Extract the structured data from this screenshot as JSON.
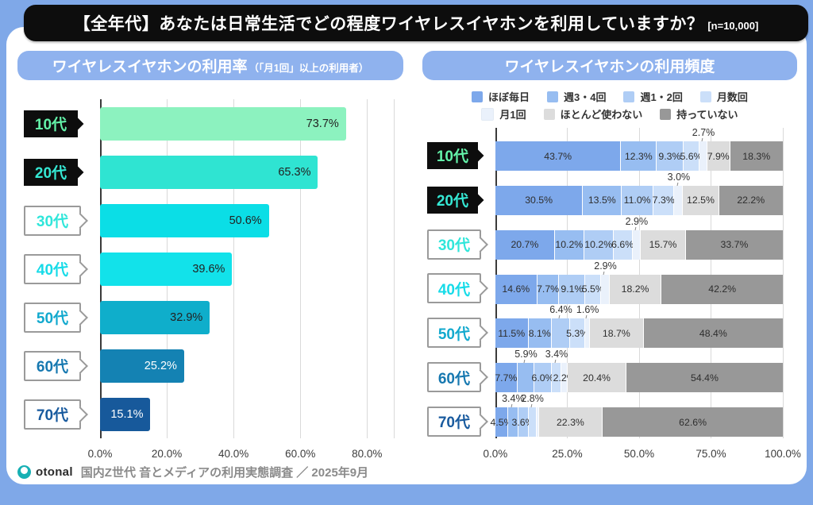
{
  "title": {
    "text": "【全年代】あなたは日常生活でどの程度ワイヤレスイヤホンを利用していますか？",
    "sample": "[n=10,000]"
  },
  "panels": {
    "usage_rate": {
      "header": "ワイヤレスイヤホンの利用率",
      "header_note": "（「月1回」以上の利用者）"
    },
    "frequency": {
      "header": "ワイヤレスイヤホンの利用頻度"
    }
  },
  "footer": {
    "brand": "otonal",
    "text": "国内Z世代 音とメディアの利用実態調査 ／ 2025年9月"
  },
  "colors": {
    "page_background": "#7FA8E8",
    "card": "#ffffff",
    "title_bar": "#0d0d0d",
    "header_pill": "#8FB2EE",
    "grid": "#d9d9d9",
    "axis_line": "#3a3a3a"
  },
  "chart_data": [
    {
      "type": "bar",
      "orientation": "horizontal",
      "title": "ワイヤレスイヤホンの利用率（「月1回」以上の利用者）",
      "categories": [
        "10代",
        "20代",
        "30代",
        "40代",
        "50代",
        "60代",
        "70代"
      ],
      "values": [
        73.7,
        65.3,
        50.6,
        39.6,
        32.9,
        25.2,
        15.1
      ],
      "value_labels": [
        "73.7%",
        "65.3%",
        "50.6%",
        "39.6%",
        "32.9%",
        "25.2%",
        "15.1%"
      ],
      "bar_colors": [
        "#8CF2BF",
        "#2FE4D2",
        "#0BDEE6",
        "#12E2EA",
        "#0FAECB",
        "#1482B3",
        "#17599B"
      ],
      "value_text_colors": [
        "#222222",
        "#222222",
        "#222222",
        "#222222",
        "#222222",
        "#ffffff",
        "#ffffff"
      ],
      "category_text_colors": [
        "#63F2A9",
        "#35E8D4",
        "#2FE6DA",
        "#16DBE8",
        "#12A9CE",
        "#1678B0",
        "#185A9E"
      ],
      "category_box_styles": [
        "black",
        "black",
        "white",
        "white",
        "white",
        "white",
        "white"
      ],
      "xticks": [
        {
          "label": "0.0%",
          "value": 0
        },
        {
          "label": "20.0%",
          "value": 20
        },
        {
          "label": "40.0%",
          "value": 40
        },
        {
          "label": "60.0%",
          "value": 60
        },
        {
          "label": "80.0%",
          "value": 80
        }
      ],
      "xmax": 88,
      "grid": true,
      "legend": false
    },
    {
      "type": "stacked-bar",
      "orientation": "horizontal",
      "title": "ワイヤレスイヤホンの利用頻度",
      "series": [
        "ほぼ毎日",
        "週3・4回",
        "週1・2回",
        "月数回",
        "月1回",
        "ほとんど使わない",
        "持っていない"
      ],
      "series_colors": [
        "#7DA8EB",
        "#97BDF1",
        "#AFCDF5",
        "#CBDFF9",
        "#EAF1FB",
        "#DCDCDC",
        "#989898"
      ],
      "legend_rows": [
        [
          "ほぼ毎日",
          "週3・4回",
          "週1・2回",
          "月数回"
        ],
        [
          "月1回",
          "ほとんど使わない",
          "持っていない"
        ]
      ],
      "categories": [
        "10代",
        "20代",
        "30代",
        "40代",
        "50代",
        "60代",
        "70代"
      ],
      "rows": [
        {
          "category": "10代",
          "values": [
            43.7,
            12.3,
            9.3,
            5.6,
            2.7,
            7.9,
            18.3
          ],
          "label_display": [
            "inside",
            "inside",
            "inside",
            "inside",
            "callout",
            "inside",
            "inside"
          ]
        },
        {
          "category": "20代",
          "values": [
            30.5,
            13.5,
            11.0,
            7.3,
            3.0,
            12.5,
            22.2
          ],
          "label_display": [
            "inside",
            "inside",
            "inside",
            "inside",
            "callout",
            "inside",
            "inside"
          ]
        },
        {
          "category": "30代",
          "values": [
            20.7,
            10.2,
            10.2,
            6.6,
            2.9,
            15.7,
            33.7
          ],
          "label_display": [
            "inside",
            "inside",
            "inside",
            "inside",
            "callout",
            "inside",
            "inside"
          ]
        },
        {
          "category": "40代",
          "values": [
            14.6,
            7.7,
            9.1,
            5.5,
            2.9,
            18.2,
            42.2
          ],
          "label_display": [
            "inside",
            "inside",
            "inside",
            "inside",
            "callout",
            "inside",
            "inside"
          ]
        },
        {
          "category": "50代",
          "values": [
            11.5,
            8.1,
            6.4,
            5.3,
            1.6,
            18.7,
            48.4
          ],
          "label_display": [
            "inside",
            "inside",
            "callout",
            "inside",
            "callout",
            "inside",
            "inside"
          ]
        },
        {
          "category": "60代",
          "values": [
            7.7,
            5.9,
            6.0,
            3.4,
            2.2,
            20.4,
            54.4
          ],
          "label_display": [
            "inside",
            "callout",
            "inside",
            "callout",
            "inside",
            "inside",
            "inside"
          ]
        },
        {
          "category": "70代",
          "values": [
            4.5,
            3.4,
            3.6,
            2.8,
            0.8,
            22.3,
            62.6
          ],
          "label_display": [
            "inside",
            "callout",
            "inside",
            "callout",
            "none",
            "inside",
            "inside"
          ]
        }
      ],
      "xticks": [
        {
          "label": "0.0%",
          "value": 0
        },
        {
          "label": "25.0%",
          "value": 25
        },
        {
          "label": "50.0%",
          "value": 50
        },
        {
          "label": "75.0%",
          "value": 75
        },
        {
          "label": "100.0%",
          "value": 100
        }
      ],
      "xmax": 100,
      "grid": true,
      "legend": true,
      "legend_position": "top"
    }
  ]
}
